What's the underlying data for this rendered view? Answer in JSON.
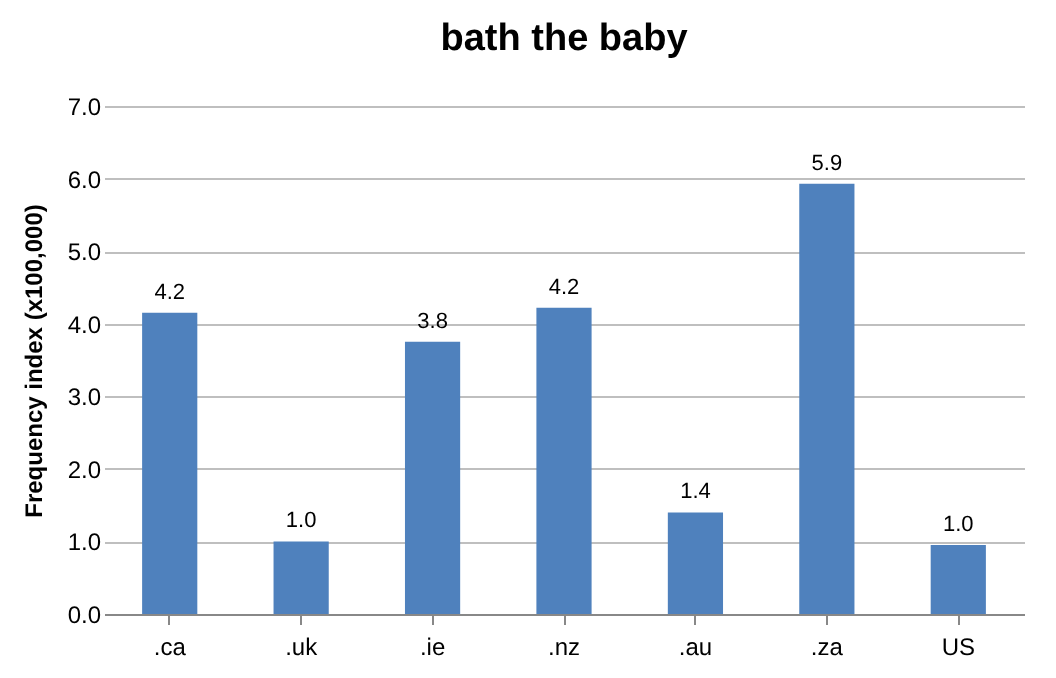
{
  "chart_data": {
    "type": "bar",
    "title": "bath the baby",
    "ylabel": "Frequency index (x100,000)",
    "categories": [
      ".ca",
      ".uk",
      ".ie",
      ".nz",
      ".au",
      ".za",
      "US"
    ],
    "values": [
      4.15,
      1.0,
      3.75,
      4.22,
      1.4,
      5.93,
      0.95
    ],
    "value_labels": [
      "4.2",
      "1.0",
      "3.8",
      "4.2",
      "1.4",
      "5.9",
      "1.0"
    ],
    "color": "#4f81bd",
    "ylim": [
      0,
      7
    ],
    "yticks": [
      {
        "value": 0,
        "label": "0.0"
      },
      {
        "value": 1,
        "label": "1.0"
      },
      {
        "value": 2,
        "label": "2.0"
      },
      {
        "value": 3,
        "label": "3.0"
      },
      {
        "value": 4,
        "label": "4.0"
      },
      {
        "value": 5,
        "label": "5.0"
      },
      {
        "value": 6,
        "label": "6.0"
      },
      {
        "value": 7,
        "label": "7.0"
      }
    ],
    "grid": "y"
  }
}
